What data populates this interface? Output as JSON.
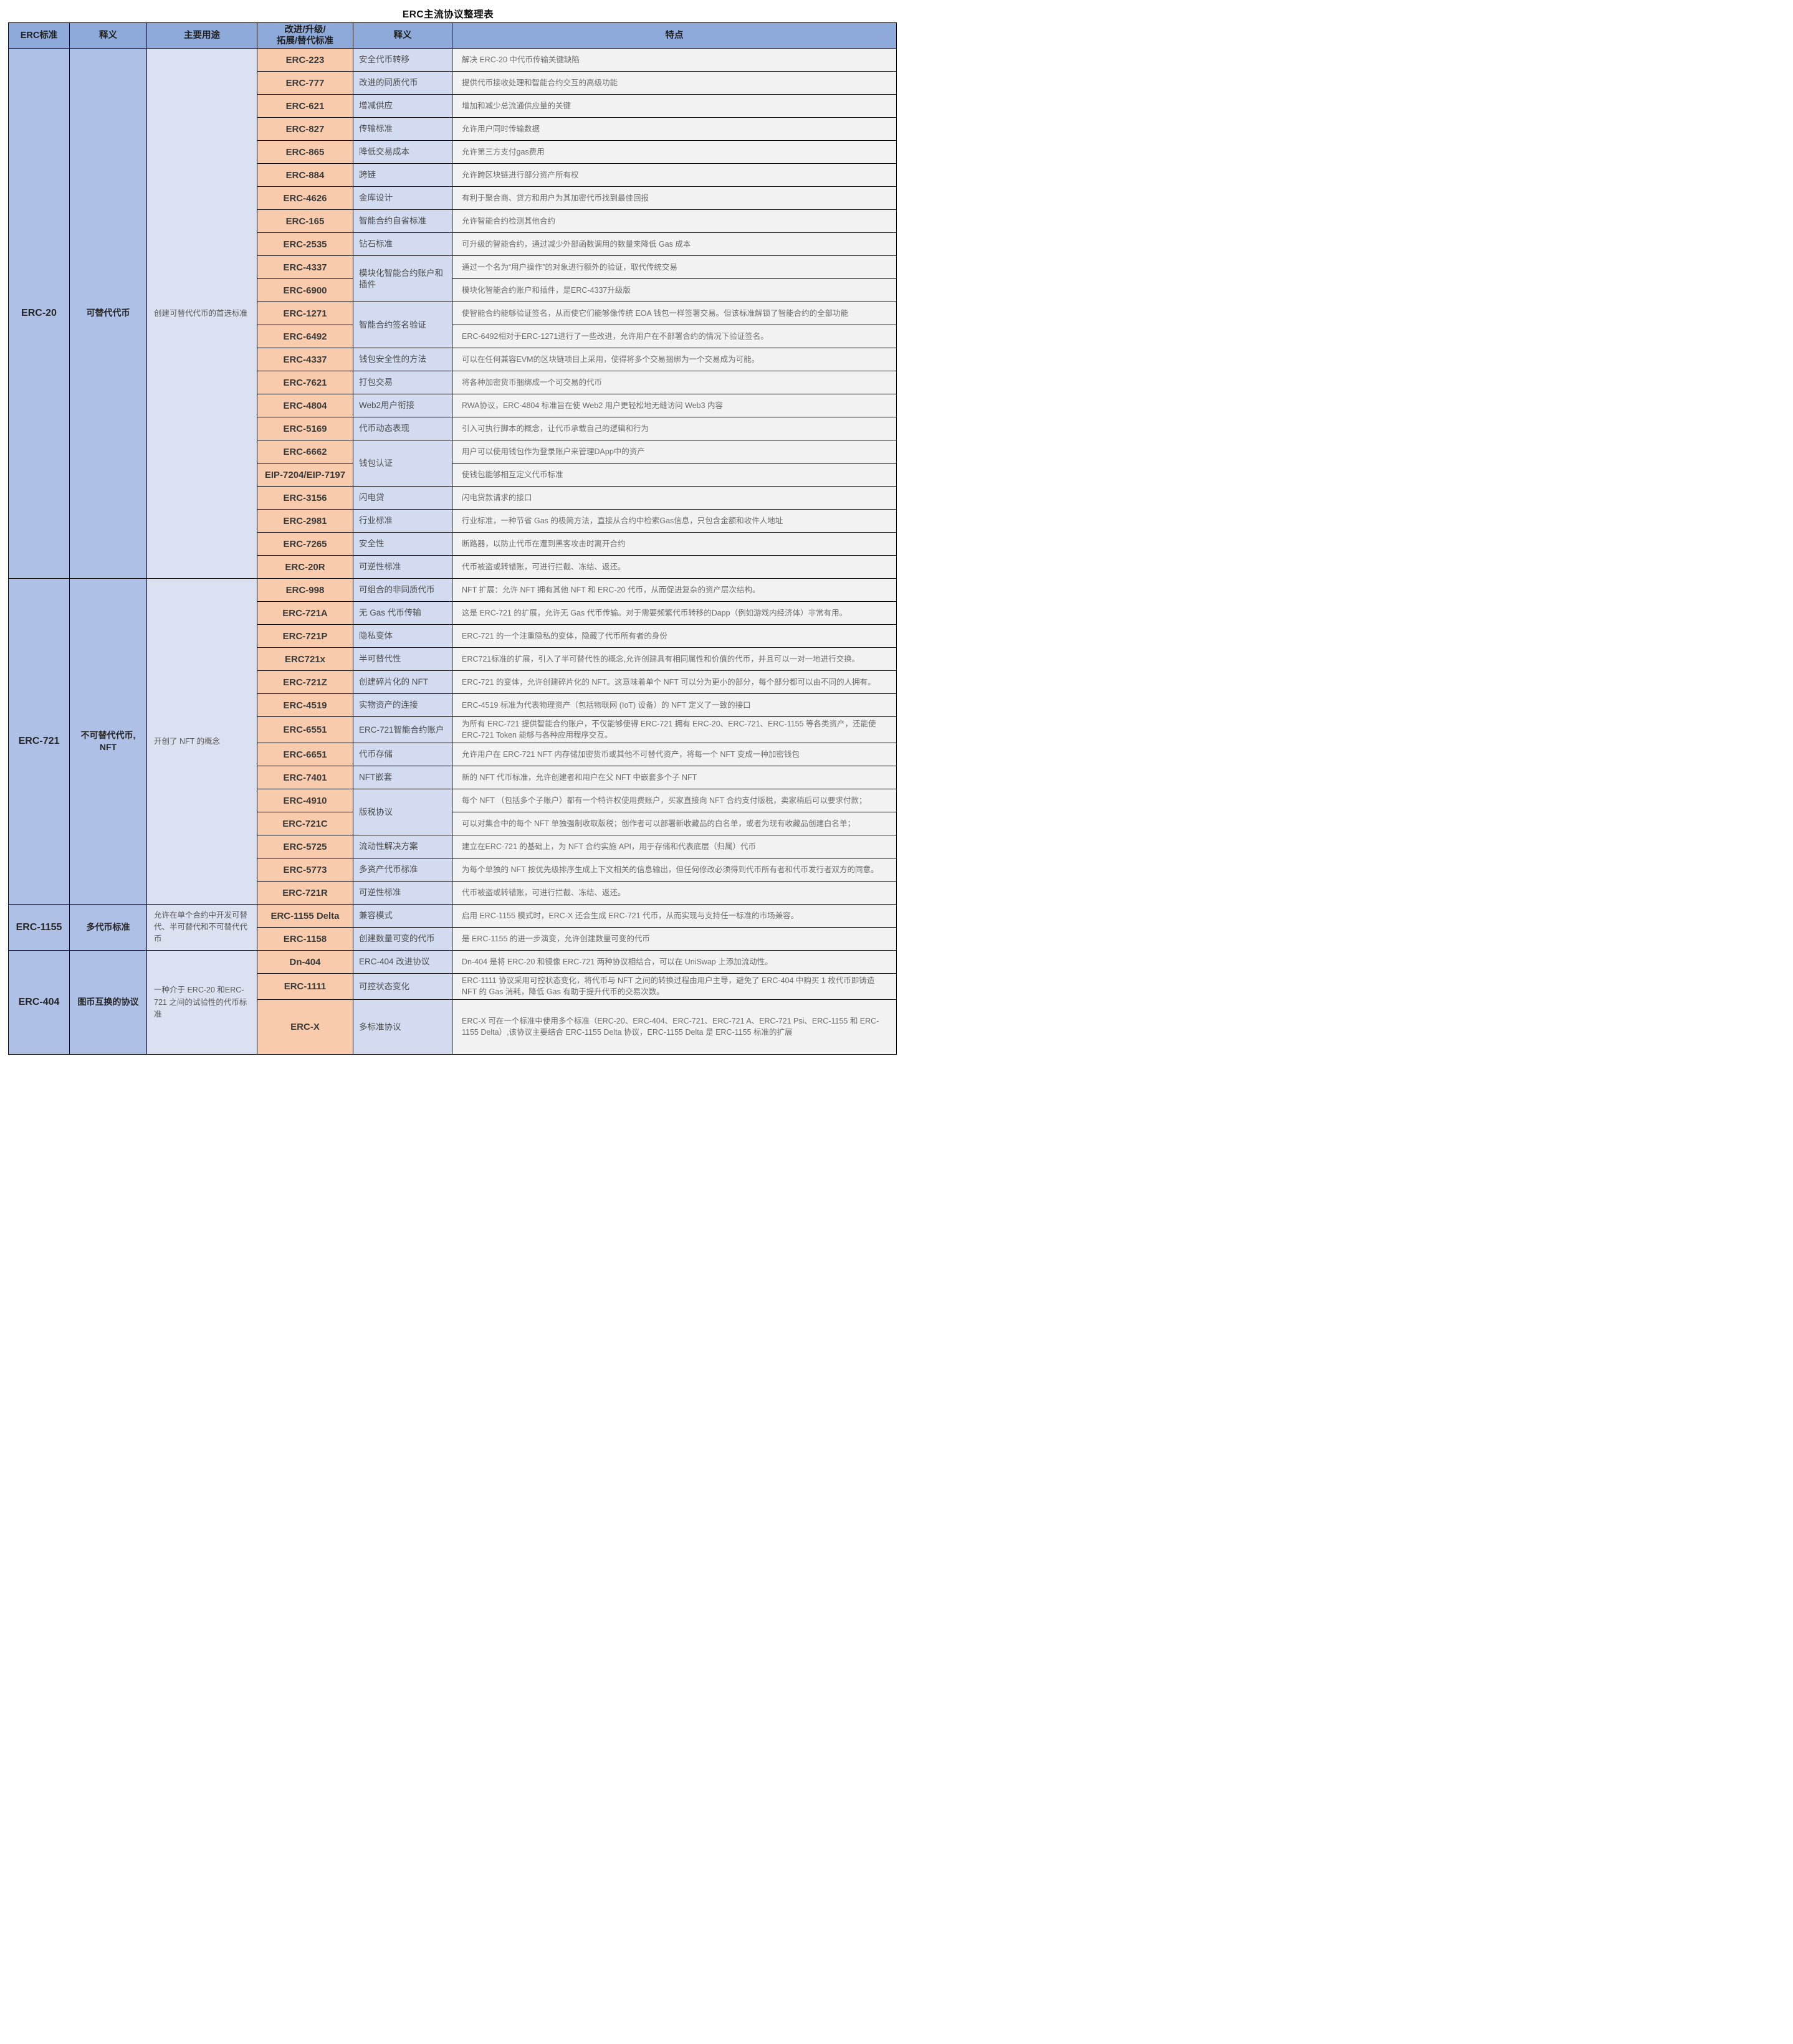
{
  "title": "ERC主流协议整理表",
  "header": {
    "std": "ERC标准",
    "meaning": "释义",
    "usage": "主要用途",
    "derived": "改进/升级/\n拓展/替代标准",
    "meaning2": "释义",
    "features": "特点"
  },
  "colors": {
    "header_bg": "#8EAADB",
    "group_bg": "#AFC0E6",
    "usage_bg": "#DCE1F1",
    "code_bg": "#F7CBAC",
    "label_bg": "#D2DBF0",
    "feature_bg": "#F2F2F2",
    "border": "#000000"
  },
  "groups": [
    {
      "std": "ERC-20",
      "meaning": "可替代代币",
      "usage": "创建可替代代币的首选标准",
      "rows": [
        {
          "code": "ERC-223",
          "label": "安全代币转移",
          "feature": "解决 ERC-20 中代币传输关键缺陷"
        },
        {
          "code": "ERC-777",
          "label": "改进的同质代币",
          "feature": "提供代币接收处理和智能合约交互的高级功能"
        },
        {
          "code": "ERC-621",
          "label": "增减供应",
          "feature": "增加和减少总流通供应量的关键"
        },
        {
          "code": "ERC-827",
          "label": "传输标准",
          "feature": "允许用户同时传输数据"
        },
        {
          "code": "ERC-865",
          "label": "降低交易成本",
          "feature": "允许第三方支付gas费用"
        },
        {
          "code": "ERC-884",
          "label": "跨链",
          "feature": "允许跨区块链进行部分资产所有权"
        },
        {
          "code": "ERC-4626",
          "label": "金库设计",
          "feature": "有利于聚合商、贷方和用户为其加密代币找到最佳回报"
        },
        {
          "code": "ERC-165",
          "label": "智能合约自省标准",
          "feature": "允许智能合约检测其他合约"
        },
        {
          "code": "ERC-2535",
          "label": "钻石标准",
          "feature": "可升级的智能合约，通过减少外部函数调用的数量来降低 Gas 成本"
        },
        {
          "code": "ERC-4337",
          "label": "模块化智能合约账户和插件",
          "span": 2,
          "feature": "通过一个名为“用户操作”的对象进行额外的验证，取代传统交易"
        },
        {
          "code": "ERC-6900",
          "span": 0,
          "feature": "模块化智能合约账户和插件，是ERC-4337升级版"
        },
        {
          "code": "ERC-1271",
          "label": "智能合约签名验证",
          "span": 2,
          "feature": "使智能合约能够验证签名，从而使它们能够像传统 EOA 钱包一样签署交易。但该标准解锁了智能合约的全部功能"
        },
        {
          "code": "ERC-6492",
          "span": 0,
          "feature": "ERC-6492相对于ERC-1271进行了一些改进，允许用户在不部署合约的情况下验证签名。"
        },
        {
          "code": "ERC-4337",
          "label": "钱包安全性的方法",
          "feature": "可以在任何兼容EVM的区块链项目上采用，使得将多个交易捆绑为一个交易成为可能。"
        },
        {
          "code": "ERC-7621",
          "label": "打包交易",
          "feature": "将各种加密货币捆绑成一个可交易的代币"
        },
        {
          "code": "ERC-4804",
          "label": "Web2用户衔接",
          "feature": "RWA协议，ERC-4804 标准旨在使 Web2 用户更轻松地无缝访问 Web3 内容"
        },
        {
          "code": "ERC-5169",
          "label": "代币动态表现",
          "feature": "引入可执行脚本的概念，让代币承载自己的逻辑和行为"
        },
        {
          "code": "ERC-6662",
          "label": "钱包认证",
          "span": 2,
          "feature": "用户可以使用钱包作为登录账户来管理DApp中的资产"
        },
        {
          "code": "EIP-7204/EIP-7197",
          "span": 0,
          "feature": "使钱包能够相互定义代币标准"
        },
        {
          "code": "ERC-3156",
          "label": "闪电贷",
          "feature": "闪电贷款请求的接口"
        },
        {
          "code": "ERC-2981",
          "label": "行业标准",
          "feature": "行业标准，一种节省 Gas 的极简方法，直接从合约中检索Gas信息，只包含金额和收件人地址"
        },
        {
          "code": "ERC-7265",
          "label": "安全性",
          "feature": "断路器，以防止代币在遭到黑客攻击时离开合约"
        },
        {
          "code": "ERC-20R",
          "label": "可逆性标准",
          "feature": "代币被盗或转错账，可进行拦截、冻结、返还。"
        }
      ]
    },
    {
      "std": "ERC-721",
      "meaning": "不可替代代币, NFT",
      "usage": "开创了 NFT 的概念",
      "rows": [
        {
          "code": "ERC-998",
          "label": "可组合的非同质代币",
          "feature": "NFT 扩展：允许 NFT 拥有其他 NFT 和 ERC-20 代币，从而促进复杂的资产层次结构。"
        },
        {
          "code": "ERC-721A",
          "label": "无 Gas 代币传输",
          "feature": "这是 ERC-721 的扩展，允许无 Gas 代币传输。对于需要频繁代币转移的Dapp（例如游戏内经济体）非常有用。"
        },
        {
          "code": "ERC-721P",
          "label": "隐私变体",
          "feature": "ERC-721 的一个注重隐私的变体，隐藏了代币所有者的身份"
        },
        {
          "code": "ERC721x",
          "label": "半可替代性",
          "feature": "ERC721标准的扩展，引入了半可替代性的概念,允许创建具有相同属性和价值的代币，并且可以一对一地进行交换。"
        },
        {
          "code": "ERC-721Z",
          "label": "创建碎片化的 NFT",
          "feature": "ERC-721 的变体，允许创建碎片化的 NFT。这意味着单个 NFT 可以分为更小的部分，每个部分都可以由不同的人拥有。"
        },
        {
          "code": "ERC-4519",
          "label": "实物资产的连接",
          "feature": "ERC-4519 标准为代表物理资产（包括物联网 (IoT) 设备）的 NFT 定义了一致的接口"
        },
        {
          "code": "ERC-6551",
          "label": "ERC-721智能合约账户",
          "feature": "为所有 ERC-721 提供智能合约账户，不仅能够使得 ERC-721 拥有 ERC-20、ERC-721、ERC-1155 等各类资产，还能使 ERC-721 Token 能够与各种应用程序交互。"
        },
        {
          "code": "ERC-6651",
          "label": "代币存储",
          "feature": "允许用户在 ERC-721 NFT 内存储加密货币或其他不可替代资产，将每一个 NFT 变成一种加密钱包"
        },
        {
          "code": "ERC-7401",
          "label": "NFT嵌套",
          "feature": "新的 NFT 代币标准，允许创建者和用户在父 NFT 中嵌套多个子 NFT"
        },
        {
          "code": "ERC-4910",
          "label": "版税协议",
          "span": 2,
          "feature": "每个 NFT （包括多个子账户）都有一个特许权使用费账户，买家直接向 NFT 合约支付版税，卖家稍后可以要求付款；"
        },
        {
          "code": "ERC-721C",
          "span": 0,
          "feature": "可以对集合中的每个 NFT 单独强制收取版税；创作者可以部署新收藏品的白名单，或者为现有收藏品创建白名单；"
        },
        {
          "code": "ERC-5725",
          "label": "流动性解决方案",
          "feature": "建立在ERC-721 的基础上，为 NFT 合约实施 API，用于存储和代表底层（归属）代币"
        },
        {
          "code": "ERC-5773",
          "label": "多资产代币标准",
          "feature": "为每个单独的 NFT 按优先级排序生成上下文相关的信息输出，但任何修改必须得到代币所有者和代币发行者双方的同意。"
        },
        {
          "code": "ERC-721R",
          "label": "可逆性标准",
          "feature": "代币被盗或转错账，可进行拦截、冻结、返还。"
        }
      ]
    },
    {
      "std": "ERC-1155",
      "meaning": "多代币标准",
      "usage": "允许在单个合约中开发可替代、半可替代和不可替代代币",
      "rows": [
        {
          "code": "ERC-1155 Delta",
          "label": "兼容模式",
          "feature": "启用 ERC-1155 模式时，ERC-X 还会生成 ERC-721 代币，从而实现与支持任一标准的市场兼容。"
        },
        {
          "code": "ERC-1158",
          "label": "创建数量可变的代币",
          "feature": "是 ERC-1155 的进一步演变，允许创建数量可变的代币"
        }
      ]
    },
    {
      "std": "ERC-404",
      "meaning": "图币互换的协议",
      "usage": "一种介于 ERC-20 和ERC-721 之间的试验性的代币标准",
      "rows": [
        {
          "code": "Dn-404",
          "label": "ERC-404 改进协议",
          "feature": "Dn-404 是将 ERC-20 和镜像 ERC-721 两种协议相结合，可以在 UniSwap 上添加流动性。"
        },
        {
          "code": "ERC-1111",
          "label": "可控状态变化",
          "feature": "ERC-1111 协议采用可控状态变化，将代币与 NFT 之间的转换过程由用户主导，避免了 ERC-404 中购买 1 枚代币即铸造 NFT 的 Gas 消耗，降低 Gas 有助于提升代币的交易次数。"
        },
        {
          "code": "ERC-X",
          "label": "多标准协议",
          "h": 88,
          "feature": "ERC-X 可在一个标准中使用多个标准（ERC-20、ERC-404、ERC-721、ERC-721 A、ERC-721 Psi、ERC-1155 和 ERC-1155 Delta）,该协议主要结合 ERC-1155 Delta 协议，ERC-1155 Delta 是 ERC-1155 标准的扩展"
        }
      ]
    }
  ]
}
